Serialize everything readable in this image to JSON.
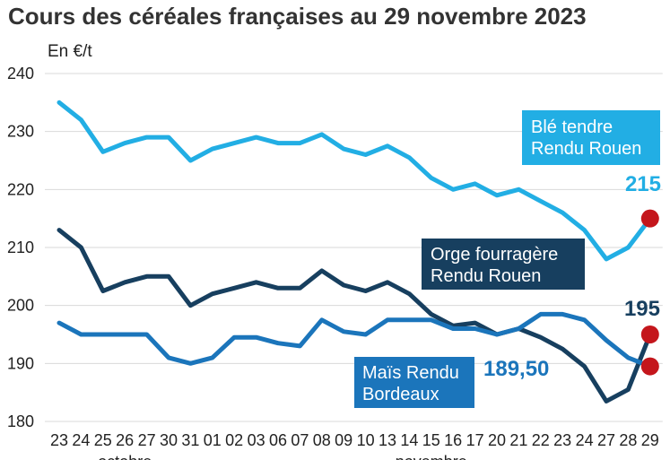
{
  "title": "Cours des céréales françaises au 29 novembre 2023",
  "chart_data": {
    "type": "line",
    "title": "Cours des céréales françaises au 29 novembre 2023",
    "ylabel": "En €/t",
    "xlabel": "",
    "ylim": [
      180,
      240
    ],
    "yticks": [
      180,
      190,
      200,
      210,
      220,
      230,
      240
    ],
    "grid": true,
    "categories": [
      "23",
      "24",
      "25",
      "26",
      "27",
      "30",
      "31",
      "01",
      "02",
      "03",
      "06",
      "07",
      "08",
      "09",
      "10",
      "13",
      "14",
      "15",
      "16",
      "17",
      "20",
      "21",
      "22",
      "23",
      "24",
      "27",
      "28",
      "29"
    ],
    "months": [
      {
        "label": "octobre",
        "from": 0,
        "to": 6
      },
      {
        "label": "novembre",
        "from": 7,
        "to": 27
      }
    ],
    "series": [
      {
        "name": "Blé tendre Rendu Rouen",
        "label_lines": [
          "Blé tendre",
          "Rendu Rouen"
        ],
        "color": "#22aee4",
        "end_label": "215",
        "values": [
          235,
          232,
          226.5,
          228,
          229,
          229,
          225,
          227,
          228,
          229,
          228,
          228,
          229.5,
          227,
          226,
          227.5,
          225.5,
          222,
          220,
          221,
          219,
          220,
          218,
          216,
          213,
          208,
          210,
          215
        ]
      },
      {
        "name": "Orge fourragère Rendu Rouen",
        "label_lines": [
          "Orge fourragère",
          "Rendu Rouen"
        ],
        "color": "#173f5f",
        "end_label": "195",
        "values": [
          213,
          210,
          202.5,
          204,
          205,
          205,
          200,
          202,
          203,
          204,
          203,
          203,
          206,
          203.5,
          202.5,
          204,
          202,
          198.5,
          196.5,
          197,
          195,
          196,
          194.5,
          192.5,
          189.5,
          183.5,
          185.5,
          195
        ]
      },
      {
        "name": "Maïs Rendu Bordeaux",
        "label_lines": [
          "Maïs Rendu",
          "Bordeaux"
        ],
        "color": "#1b75bb",
        "end_label": "189,50",
        "values": [
          197,
          195,
          195,
          195,
          195,
          191,
          190,
          191,
          194.5,
          194.5,
          193.5,
          193,
          197.5,
          195.5,
          195,
          197.5,
          197.5,
          197.5,
          196,
          196,
          195,
          196,
          198.5,
          198.5,
          197.5,
          194,
          191,
          189.5
        ]
      }
    ],
    "marker_color": "#c4161c"
  }
}
